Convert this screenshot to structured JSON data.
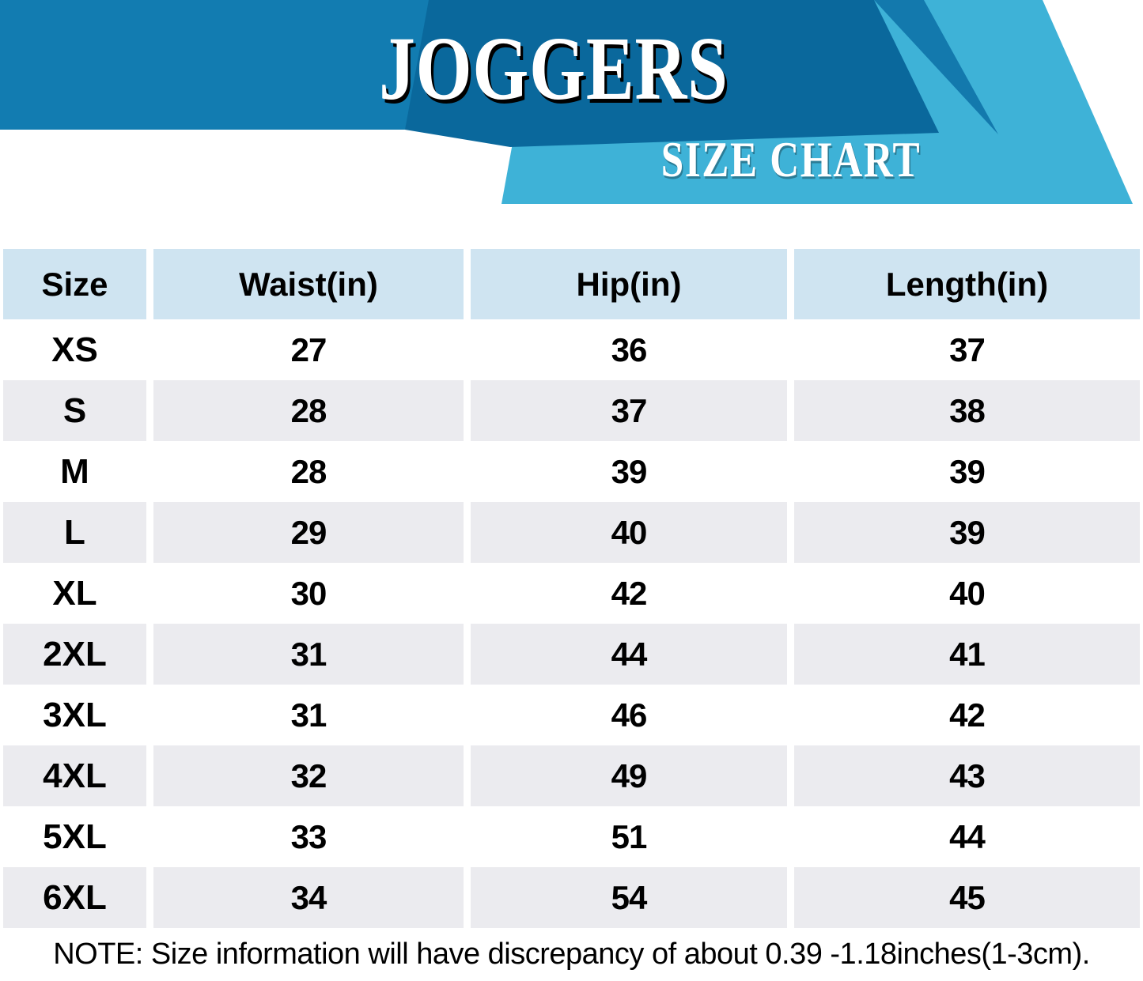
{
  "banner": {
    "title": "JOGGERS",
    "subtitle": "SIZE CHART"
  },
  "colors": {
    "banner_left_band": "#127cb1",
    "banner_dark_shape": "#0a689c",
    "banner_wedge_shape": "#1379ad",
    "banner_cyan_band": "#3eb2d7",
    "table_header_bg": "#cfe4f1",
    "table_alt_row_bg": "#ebebef",
    "table_row_bg": "#ffffff",
    "text": "#000000",
    "title_text": "#ffffff"
  },
  "table": {
    "headers": [
      "Size",
      "Waist(in)",
      "Hip(in)",
      "Length(in)"
    ],
    "rows": [
      {
        "size": "XS",
        "waist": "27",
        "hip": "36",
        "length": "37"
      },
      {
        "size": "S",
        "waist": "28",
        "hip": "37",
        "length": "38"
      },
      {
        "size": "M",
        "waist": "28",
        "hip": "39",
        "length": "39"
      },
      {
        "size": "L",
        "waist": "29",
        "hip": "40",
        "length": "39"
      },
      {
        "size": "XL",
        "waist": "30",
        "hip": "42",
        "length": "40"
      },
      {
        "size": "2XL",
        "waist": "31",
        "hip": "44",
        "length": "41"
      },
      {
        "size": "3XL",
        "waist": "31",
        "hip": "46",
        "length": "42"
      },
      {
        "size": "4XL",
        "waist": "32",
        "hip": "49",
        "length": "43"
      },
      {
        "size": "5XL",
        "waist": "33",
        "hip": "51",
        "length": "44"
      },
      {
        "size": "6XL",
        "waist": "34",
        "hip": "54",
        "length": "45"
      }
    ]
  },
  "note": "NOTE: Size information will have discrepancy of about 0.39 -1.18inches(1-3cm).",
  "chart_data": {
    "type": "table",
    "title": "JOGGERS SIZE CHART",
    "columns": [
      "Size",
      "Waist(in)",
      "Hip(in)",
      "Length(in)"
    ],
    "rows": [
      [
        "XS",
        27,
        36,
        37
      ],
      [
        "S",
        28,
        37,
        38
      ],
      [
        "M",
        28,
        39,
        39
      ],
      [
        "L",
        29,
        40,
        39
      ],
      [
        "XL",
        30,
        42,
        40
      ],
      [
        "2XL",
        31,
        44,
        41
      ],
      [
        "3XL",
        31,
        46,
        42
      ],
      [
        "4XL",
        32,
        49,
        43
      ],
      [
        "5XL",
        33,
        51,
        44
      ],
      [
        "6XL",
        34,
        54,
        45
      ]
    ],
    "footnote": "NOTE: Size information will have discrepancy of about 0.39 -1.18inches(1-3cm).",
    "units": "inches"
  }
}
